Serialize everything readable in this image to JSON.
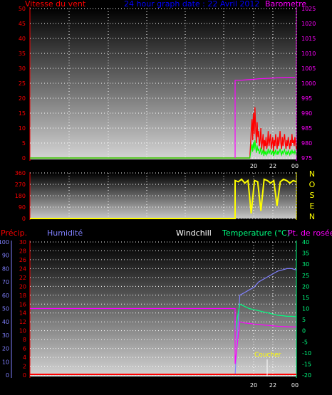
{
  "panel1": {
    "title_left": "Vitesse du vent",
    "title_center": "24 hour graph date : 22 Avril 2012",
    "title_right": "Barometre",
    "left_ticks": [
      "0",
      "5",
      "10",
      "15",
      "20",
      "25",
      "30",
      "35",
      "40",
      "45",
      "50"
    ],
    "right_ticks": [
      "975",
      "980",
      "985",
      "990",
      "995",
      "1000",
      "1005",
      "1010",
      "1015",
      "1020",
      "1025"
    ],
    "time_ticks": [
      "20",
      "22",
      "00"
    ]
  },
  "panel2": {
    "left_ticks": [
      "0",
      "90",
      "180",
      "270",
      "360"
    ],
    "compass": [
      "N",
      "O",
      "S",
      "E",
      "N"
    ]
  },
  "panel3": {
    "label_precip": "Précip.",
    "label_humid": "Humidité",
    "label_windchill": "Windchill",
    "label_temp": "Temperature (°C)",
    "label_dew": "Pt. de rosée",
    "humid_ticks": [
      "0",
      "10",
      "20",
      "30",
      "40",
      "50",
      "60",
      "70",
      "80",
      "90",
      "100"
    ],
    "precip_ticks": [
      "0",
      "2",
      "4",
      "6",
      "8",
      "10",
      "12",
      "14",
      "16",
      "18",
      "20",
      "22",
      "24",
      "26",
      "28",
      "30"
    ],
    "temp_ticks": [
      "-20",
      "-15",
      "-10",
      "-5",
      "0",
      "5",
      "10",
      "15",
      "20",
      "25",
      "30",
      "35",
      "40"
    ],
    "time_ticks": [
      "20",
      "22",
      "00"
    ],
    "sunset": "Coucher"
  },
  "colors": {
    "wind": "#ff0000",
    "gust": "#00ff00",
    "baro": "#ff00ff",
    "dir": "#ffff00",
    "humid": "#8080ff",
    "temp": "#00ff80",
    "dew": "#ff00ff",
    "precip": "#ff0000"
  },
  "chart_data": [
    {
      "type": "line",
      "title": "24 hour graph date : 22 Avril 2012",
      "ylabel": "Vitesse du vent",
      "y2label": "Barometre",
      "ylim": [
        0,
        50
      ],
      "y2lim": [
        975,
        1025
      ],
      "x_ticks": [
        "20",
        "22",
        "00"
      ],
      "series": [
        {
          "name": "Vitesse du vent",
          "values": [
            0,
            0,
            0,
            0,
            0,
            0,
            0,
            0,
            0,
            0,
            0,
            0,
            0,
            0,
            0,
            0,
            0,
            0,
            0,
            0,
            0,
            0,
            0,
            0,
            0,
            0,
            0,
            0,
            0,
            0,
            0,
            0,
            0,
            0,
            0,
            0,
            0,
            0,
            0,
            0,
            0,
            0,
            0,
            0,
            0,
            0,
            0,
            0,
            0,
            0,
            0,
            0,
            0,
            0,
            0,
            0,
            0,
            0,
            0,
            0,
            0,
            0,
            0,
            0,
            0,
            0,
            0,
            0,
            0,
            0,
            0,
            0,
            0,
            0,
            0,
            0,
            0,
            0,
            0,
            0,
            0,
            0,
            0,
            0,
            0,
            0,
            0,
            0,
            0,
            0,
            0,
            0,
            0,
            0,
            0,
            0,
            0,
            0,
            0,
            0,
            0,
            0,
            0,
            0,
            0,
            0,
            0,
            0,
            0,
            0,
            0,
            0,
            0,
            0,
            0,
            0,
            0,
            0,
            0,
            0,
            0,
            0,
            0,
            0,
            0,
            0,
            0,
            0,
            0,
            0,
            0,
            0,
            0,
            0,
            0,
            0,
            0,
            0,
            0,
            0,
            0,
            0,
            0,
            0,
            0,
            0,
            0,
            0,
            0,
            0,
            0,
            0,
            0,
            0,
            0,
            0,
            0,
            0,
            0,
            0,
            0,
            0,
            0,
            0,
            0,
            0,
            0,
            0,
            0,
            0,
            0,
            0,
            0,
            0,
            0,
            0,
            0,
            0,
            0,
            0,
            0,
            0,
            0,
            0,
            0,
            0,
            0,
            0,
            0,
            0,
            0,
            0,
            0,
            0,
            0,
            0,
            0,
            0,
            0,
            0,
            0,
            0,
            0,
            0,
            0,
            0,
            0,
            0,
            0,
            0,
            0,
            0,
            0,
            0,
            0,
            0,
            0,
            0,
            0,
            0,
            0,
            0,
            0,
            0,
            0,
            0,
            0,
            0,
            0,
            0,
            0,
            0,
            0,
            0,
            0,
            0,
            0,
            0,
            0,
            0,
            0,
            0,
            0,
            0,
            0,
            0,
            0,
            0,
            0,
            0,
            0,
            0,
            0,
            0,
            0,
            0,
            0,
            0,
            0,
            0,
            0,
            0,
            0,
            0,
            0,
            0,
            0,
            0,
            0,
            0,
            0,
            0,
            0,
            0,
            0,
            0,
            0,
            0,
            0,
            0,
            0,
            0,
            0,
            0,
            0,
            0,
            0,
            0,
            0,
            0,
            0,
            0,
            0,
            0,
            0,
            0,
            0,
            0,
            4,
            9,
            13,
            6,
            15,
            8,
            17,
            10,
            5,
            12,
            7,
            9,
            4,
            6,
            10,
            3,
            5,
            8,
            2,
            6,
            4,
            7,
            3,
            5,
            9,
            4,
            6,
            8,
            3,
            5,
            7,
            2,
            6,
            4,
            8,
            5,
            3,
            7,
            4,
            6,
            9,
            5,
            3,
            7,
            4,
            6,
            8,
            5,
            3,
            6,
            4,
            7,
            5,
            3,
            6,
            4,
            8,
            5,
            6,
            4,
            7,
            5,
            3
          ]
        },
        {
          "name": "Barometre",
          "values": [
            1001,
            1001,
            1001.2,
            1001.3,
            1001.5,
            1001.6,
            1001.7,
            1001.8,
            1001.9,
            1002,
            1002
          ]
        }
      ]
    },
    {
      "type": "line",
      "ylabel": "Direction",
      "ylim": [
        0,
        360
      ],
      "series": [
        {
          "name": "Direction",
          "values": [
            0,
            0,
            300,
            290,
            310,
            280,
            300,
            40,
            300,
            290,
            60,
            310,
            300,
            280,
            300,
            100,
            290,
            310,
            300,
            280,
            300,
            290
          ]
        }
      ]
    },
    {
      "type": "line",
      "ylim": [
        -20,
        40
      ],
      "y_humid": [
        0,
        100
      ],
      "y_precip": [
        0,
        30
      ],
      "x_ticks": [
        "20",
        "22",
        "00"
      ],
      "series": [
        {
          "name": "Humidité",
          "values": [
            0,
            60,
            62,
            64,
            66,
            70,
            72,
            74,
            76,
            78,
            79,
            80,
            80,
            79
          ]
        },
        {
          "name": "Temperature (°C)",
          "values": [
            0,
            12,
            11,
            10,
            9.5,
            9,
            8.5,
            8,
            7.5,
            7,
            6.8,
            6.5,
            6.5,
            6.3
          ]
        },
        {
          "name": "Pt. de rosée",
          "values": [
            10,
            4,
            3.5,
            3.3,
            3,
            2.8,
            2.6,
            2.4,
            2.2,
            2,
            1.9,
            1.8,
            1.7,
            1.7
          ]
        },
        {
          "name": "Précip.",
          "values": [
            0,
            0,
            0,
            0,
            0,
            0,
            0,
            0,
            0,
            0,
            0,
            0,
            0,
            0
          ]
        }
      ]
    }
  ]
}
